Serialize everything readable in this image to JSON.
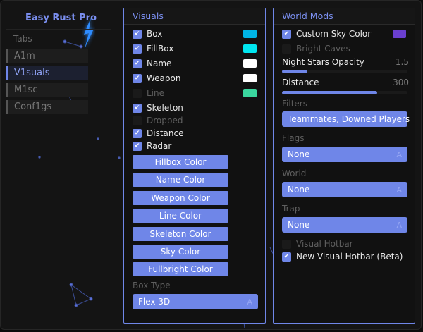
{
  "app": {
    "title": "Easy Rust Pro",
    "accent": "#6f86e8"
  },
  "sidebar": {
    "tabs_label": "Tabs",
    "items": [
      {
        "label": "A1m",
        "active": false
      },
      {
        "label": "V1suals",
        "active": true
      },
      {
        "label": "M1sc",
        "active": false
      },
      {
        "label": "Conf1gs",
        "active": false
      }
    ]
  },
  "visuals": {
    "title": "Visuals",
    "toggles": [
      {
        "label": "Box",
        "checked": true,
        "color": "#00b4e6"
      },
      {
        "label": "FillBox",
        "checked": true,
        "color": "#00e6f0"
      },
      {
        "label": "Name",
        "checked": true,
        "color": "#ffffff"
      },
      {
        "label": "Weapon",
        "checked": true,
        "color": "#ffffff"
      },
      {
        "label": "Line",
        "checked": false,
        "color": "#3ad69e"
      },
      {
        "label": "Skeleton",
        "checked": true
      },
      {
        "label": "Dropped",
        "checked": false
      },
      {
        "label": "Distance",
        "checked": true
      },
      {
        "label": "Radar",
        "checked": true
      }
    ],
    "buttons": [
      "Fillbox Color",
      "Name Color",
      "Weapon Color",
      "Line Color",
      "Skeleton Color",
      "Sky Color",
      "Fullbright Color"
    ],
    "box_type_label": "Box Type",
    "box_type_value": "Flex 3D",
    "dropdown_arrow": "A"
  },
  "world": {
    "title": "World Mods",
    "custom_sky": {
      "label": "Custom Sky Color",
      "checked": true,
      "color": "#6a3fcf"
    },
    "bright_caves": {
      "label": "Bright Caves",
      "checked": false
    },
    "night_stars": {
      "label": "Night Stars Opacity",
      "value": "1.5",
      "fill_fraction": 0.2
    },
    "distance": {
      "label": "Distance",
      "value": "300",
      "fill_fraction": 0.76
    },
    "filters": {
      "label": "Filters",
      "value": "Teammates, Downed Players"
    },
    "flags": {
      "label": "Flags",
      "value": "None"
    },
    "world": {
      "label": "World",
      "value": "None"
    },
    "trap": {
      "label": "Trap",
      "value": "None"
    },
    "visual_hotbar": {
      "label": "Visual Hotbar",
      "checked": false
    },
    "new_visual_hotbar": {
      "label": "New Visual Hotbar (Beta)",
      "checked": true
    },
    "dropdown_arrow": "A"
  }
}
